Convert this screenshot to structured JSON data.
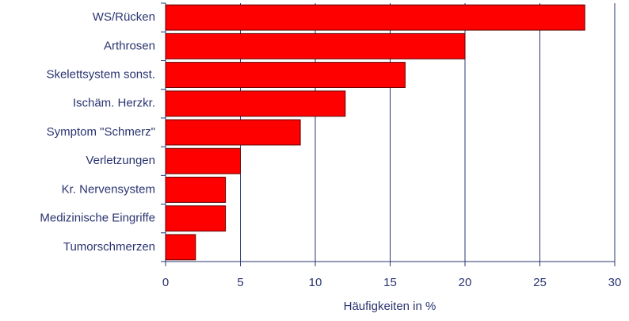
{
  "chart_data": {
    "type": "bar",
    "orientation": "horizontal",
    "x_label": "Häufigkeiten in %",
    "categories": [
      "WS/Rücken",
      "Arthrosen",
      "Skelettsystem sonst.",
      "Ischäm. Herzkr.",
      "Symptom \"Schmerz\"",
      "Verletzungen",
      "Kr. Nervensystem",
      "Medizinische Eingriffe",
      "Tumorschmerzen"
    ],
    "values": [
      28,
      20,
      16,
      12,
      9,
      5,
      4,
      4,
      2
    ],
    "color": "#ff0000",
    "xlim": [
      0,
      30
    ],
    "xticks": [
      0,
      5,
      10,
      15,
      20,
      25,
      30
    ],
    "grid": true
  }
}
